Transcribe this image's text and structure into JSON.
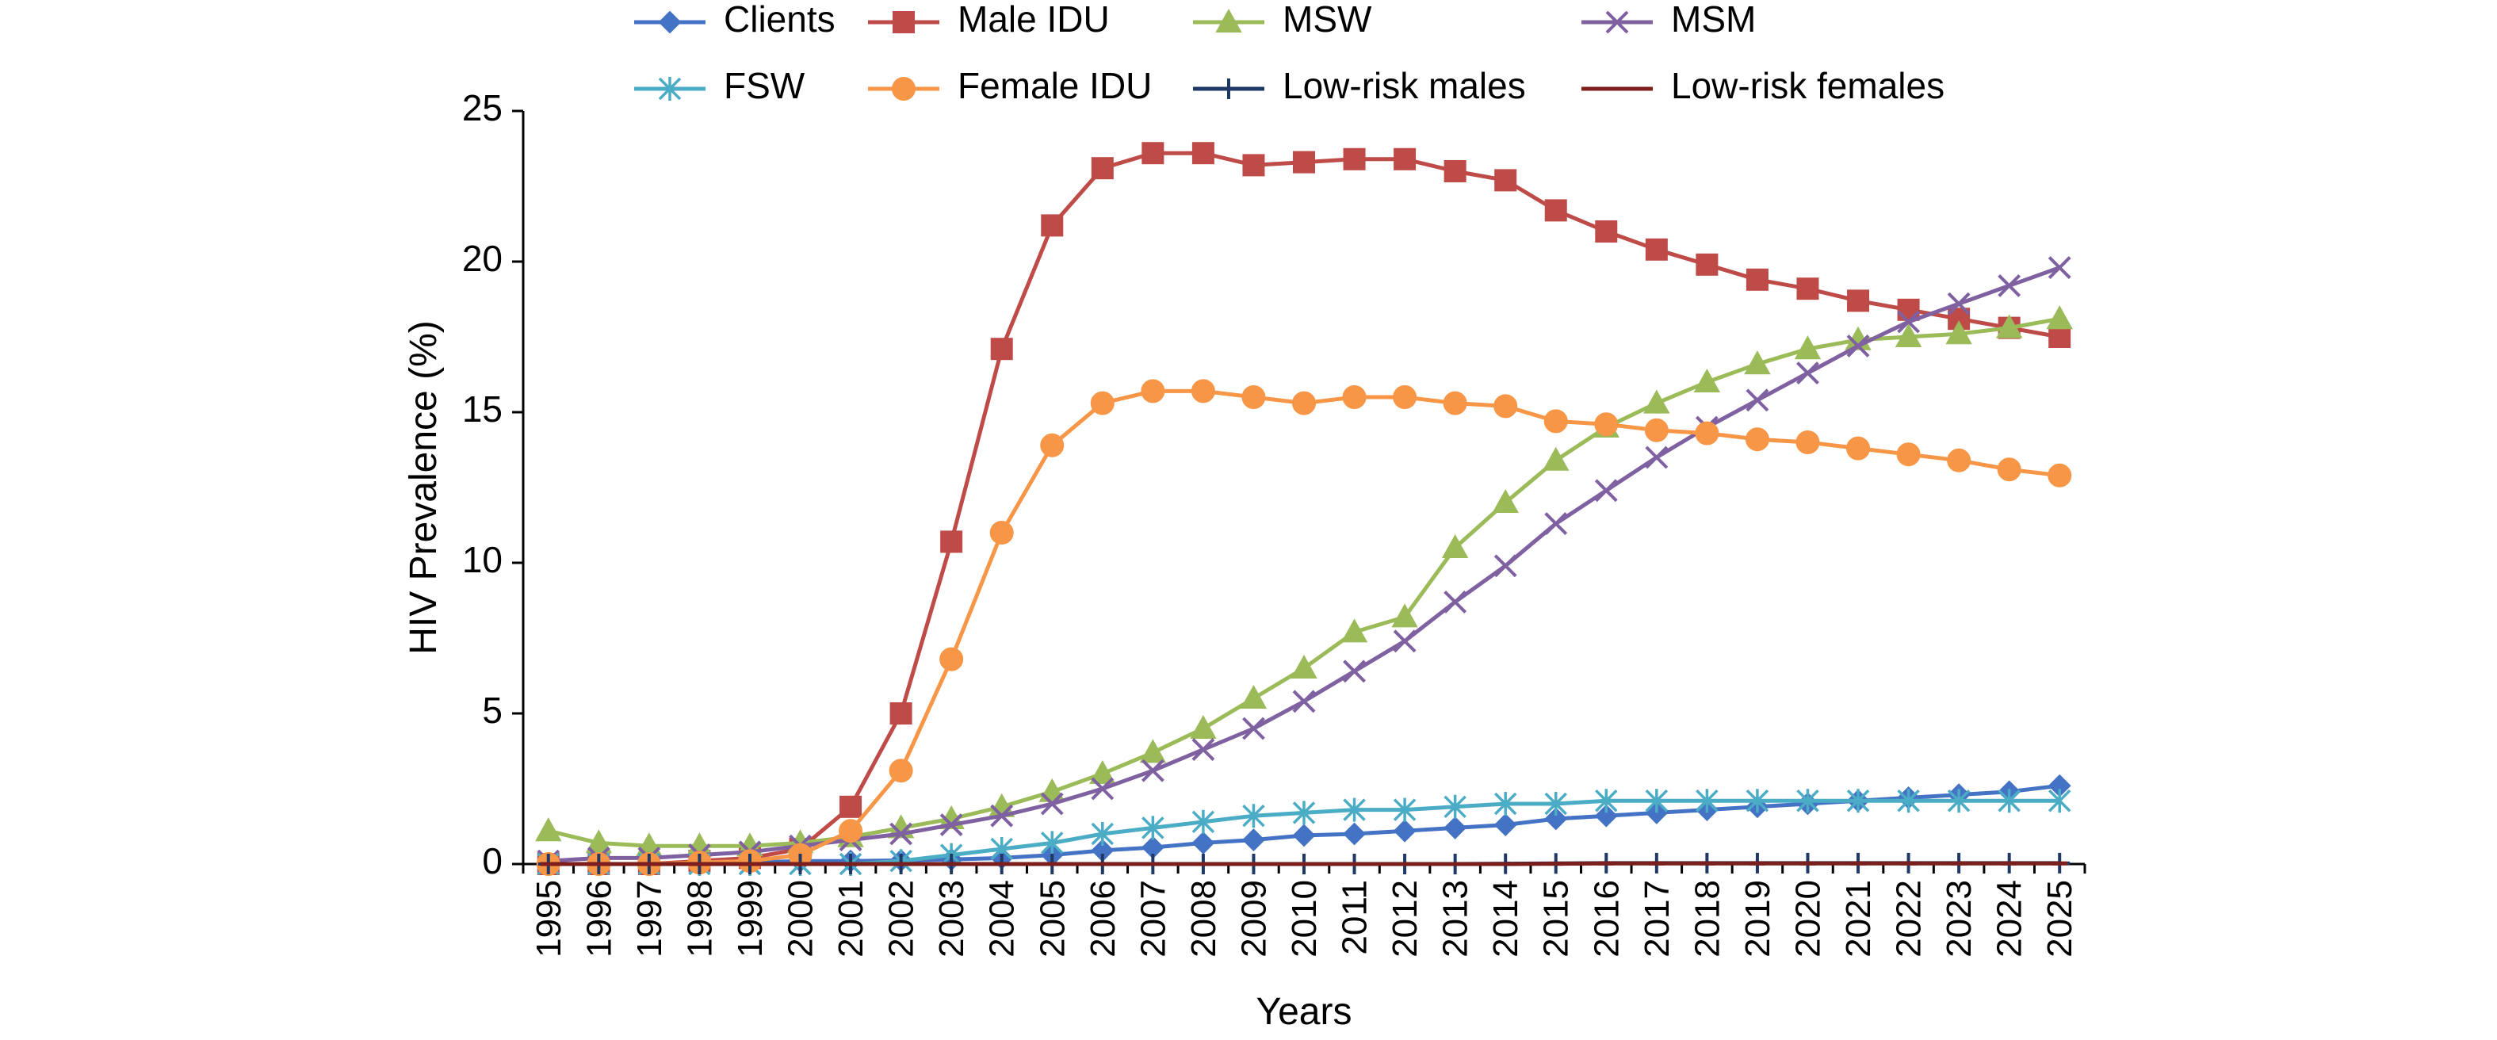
{
  "chart_data": {
    "type": "line",
    "title": "",
    "xlabel": "Years",
    "ylabel": "HIV Prevalence (%)",
    "ylim": [
      0,
      25
    ],
    "yticks": [
      "0",
      "5",
      "10",
      "15",
      "20",
      "25"
    ],
    "grid": false,
    "legend_position": "top",
    "categories": [
      "1995",
      "1996",
      "1997",
      "1998",
      "1999",
      "2000",
      "2001",
      "2002",
      "2003",
      "2004",
      "2005",
      "2006",
      "2007",
      "2008",
      "2009",
      "2010",
      "2011",
      "2012",
      "2013",
      "2014",
      "2015",
      "2016",
      "2017",
      "2018",
      "2019",
      "2020",
      "2021",
      "2022",
      "2023",
      "2024",
      "2025"
    ],
    "series": [
      {
        "name": "Clients",
        "color": "#4472C4",
        "marker": "diamond",
        "values": [
          0,
          0,
          0,
          0,
          0.05,
          0.1,
          0.1,
          0.12,
          0.15,
          0.2,
          0.3,
          0.45,
          0.55,
          0.7,
          0.8,
          0.95,
          1.0,
          1.1,
          1.2,
          1.3,
          1.5,
          1.6,
          1.7,
          1.8,
          1.9,
          2.0,
          2.1,
          2.2,
          2.3,
          2.4,
          2.6
        ]
      },
      {
        "name": "Male IDU",
        "color": "#BE4B48",
        "marker": "square",
        "values": [
          0,
          0,
          0,
          0.1,
          0.2,
          0.5,
          1.9,
          5.0,
          10.7,
          17.1,
          21.2,
          23.1,
          23.6,
          23.6,
          23.2,
          23.3,
          23.4,
          23.4,
          23.0,
          22.7,
          21.7,
          21.0,
          20.4,
          19.9,
          19.4,
          19.1,
          18.7,
          18.4,
          18.1,
          17.8,
          17.5
        ]
      },
      {
        "name": "MSW",
        "color": "#9BBB59",
        "marker": "triangle",
        "values": [
          1.1,
          0.7,
          0.6,
          0.6,
          0.6,
          0.7,
          0.9,
          1.2,
          1.5,
          1.9,
          2.4,
          3.0,
          3.7,
          4.5,
          5.5,
          6.5,
          7.7,
          8.2,
          10.5,
          12.0,
          13.4,
          14.5,
          15.3,
          16.0,
          16.6,
          17.1,
          17.4,
          17.5,
          17.6,
          17.8,
          18.1
        ]
      },
      {
        "name": "MSM",
        "color": "#7F60A0",
        "marker": "x",
        "values": [
          0.1,
          0.2,
          0.2,
          0.3,
          0.4,
          0.6,
          0.8,
          1.0,
          1.3,
          1.6,
          2.0,
          2.5,
          3.1,
          3.8,
          4.5,
          5.4,
          6.4,
          7.4,
          8.7,
          9.9,
          11.3,
          12.4,
          13.5,
          14.5,
          15.4,
          16.3,
          17.2,
          18.0,
          18.6,
          19.2,
          19.8
        ]
      },
      {
        "name": "FSW",
        "color": "#4BACC6",
        "marker": "asterisk",
        "values": [
          0,
          0,
          0,
          0,
          0,
          0,
          0,
          0.1,
          0.3,
          0.5,
          0.7,
          1.0,
          1.2,
          1.4,
          1.6,
          1.7,
          1.8,
          1.8,
          1.9,
          2.0,
          2.0,
          2.1,
          2.1,
          2.1,
          2.1,
          2.1,
          2.1,
          2.1,
          2.1,
          2.1,
          2.1
        ]
      },
      {
        "name": "Female IDU",
        "color": "#F79646",
        "marker": "circle",
        "values": [
          0,
          0,
          0,
          0.05,
          0.1,
          0.3,
          1.1,
          3.1,
          6.8,
          11.0,
          13.9,
          15.3,
          15.7,
          15.7,
          15.5,
          15.3,
          15.5,
          15.5,
          15.3,
          15.2,
          14.7,
          14.6,
          14.4,
          14.3,
          14.1,
          14.0,
          13.8,
          13.6,
          13.4,
          13.1,
          12.9
        ]
      },
      {
        "name": "Low-risk males",
        "color": "#1F3864",
        "marker": "plus",
        "values": [
          0,
          0,
          0,
          0,
          0,
          0,
          0,
          0,
          0,
          0,
          0,
          0,
          0,
          0,
          0,
          0,
          0,
          0,
          0,
          0.01,
          0.02,
          0.03,
          0.03,
          0.03,
          0.03,
          0.03,
          0.03,
          0.03,
          0.03,
          0.03,
          0.03
        ]
      },
      {
        "name": "Low-risk females",
        "color": "#7B1E1E",
        "marker": "dash",
        "values": [
          0,
          0,
          0,
          0,
          0,
          0,
          0,
          0,
          0,
          0,
          0,
          0,
          0,
          0,
          0,
          0,
          0,
          0,
          0,
          0,
          0.01,
          0.02,
          0.02,
          0.02,
          0.02,
          0.02,
          0.02,
          0.02,
          0.02,
          0.02,
          0.02
        ]
      }
    ]
  }
}
